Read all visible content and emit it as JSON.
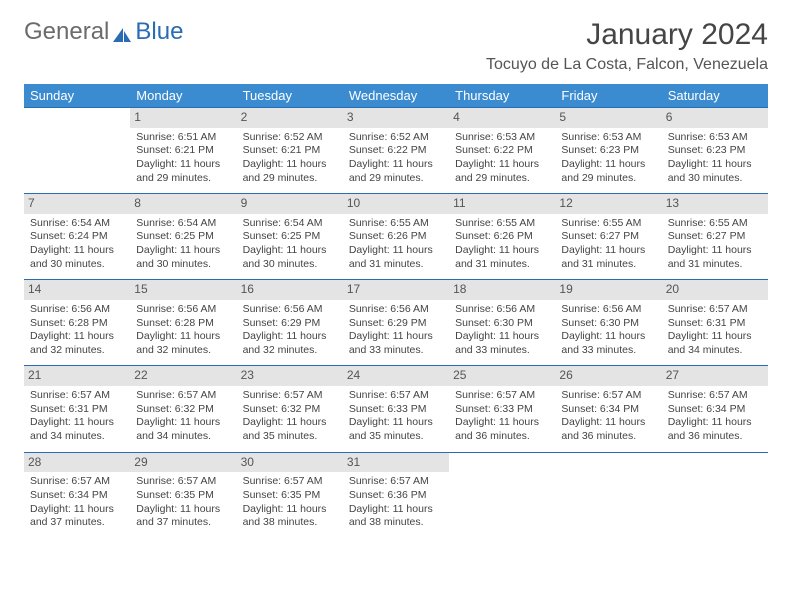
{
  "logo": {
    "text1": "General",
    "text2": "Blue"
  },
  "title": "January 2024",
  "location": "Tocuyo de La Costa, Falcon, Venezuela",
  "colors": {
    "header_bg": "#3b8bd0",
    "header_text": "#ffffff",
    "row_border": "#2a6cb3",
    "daynum_bg": "#e4e4e4",
    "text": "#444444",
    "logo_blue": "#2a6cb3"
  },
  "daysOfWeek": [
    "Sunday",
    "Monday",
    "Tuesday",
    "Wednesday",
    "Thursday",
    "Friday",
    "Saturday"
  ],
  "weeks": [
    [
      null,
      {
        "n": "1",
        "sr": "Sunrise: 6:51 AM",
        "ss": "Sunset: 6:21 PM",
        "d1": "Daylight: 11 hours",
        "d2": "and 29 minutes."
      },
      {
        "n": "2",
        "sr": "Sunrise: 6:52 AM",
        "ss": "Sunset: 6:21 PM",
        "d1": "Daylight: 11 hours",
        "d2": "and 29 minutes."
      },
      {
        "n": "3",
        "sr": "Sunrise: 6:52 AM",
        "ss": "Sunset: 6:22 PM",
        "d1": "Daylight: 11 hours",
        "d2": "and 29 minutes."
      },
      {
        "n": "4",
        "sr": "Sunrise: 6:53 AM",
        "ss": "Sunset: 6:22 PM",
        "d1": "Daylight: 11 hours",
        "d2": "and 29 minutes."
      },
      {
        "n": "5",
        "sr": "Sunrise: 6:53 AM",
        "ss": "Sunset: 6:23 PM",
        "d1": "Daylight: 11 hours",
        "d2": "and 29 minutes."
      },
      {
        "n": "6",
        "sr": "Sunrise: 6:53 AM",
        "ss": "Sunset: 6:23 PM",
        "d1": "Daylight: 11 hours",
        "d2": "and 30 minutes."
      }
    ],
    [
      {
        "n": "7",
        "sr": "Sunrise: 6:54 AM",
        "ss": "Sunset: 6:24 PM",
        "d1": "Daylight: 11 hours",
        "d2": "and 30 minutes."
      },
      {
        "n": "8",
        "sr": "Sunrise: 6:54 AM",
        "ss": "Sunset: 6:25 PM",
        "d1": "Daylight: 11 hours",
        "d2": "and 30 minutes."
      },
      {
        "n": "9",
        "sr": "Sunrise: 6:54 AM",
        "ss": "Sunset: 6:25 PM",
        "d1": "Daylight: 11 hours",
        "d2": "and 30 minutes."
      },
      {
        "n": "10",
        "sr": "Sunrise: 6:55 AM",
        "ss": "Sunset: 6:26 PM",
        "d1": "Daylight: 11 hours",
        "d2": "and 31 minutes."
      },
      {
        "n": "11",
        "sr": "Sunrise: 6:55 AM",
        "ss": "Sunset: 6:26 PM",
        "d1": "Daylight: 11 hours",
        "d2": "and 31 minutes."
      },
      {
        "n": "12",
        "sr": "Sunrise: 6:55 AM",
        "ss": "Sunset: 6:27 PM",
        "d1": "Daylight: 11 hours",
        "d2": "and 31 minutes."
      },
      {
        "n": "13",
        "sr": "Sunrise: 6:55 AM",
        "ss": "Sunset: 6:27 PM",
        "d1": "Daylight: 11 hours",
        "d2": "and 31 minutes."
      }
    ],
    [
      {
        "n": "14",
        "sr": "Sunrise: 6:56 AM",
        "ss": "Sunset: 6:28 PM",
        "d1": "Daylight: 11 hours",
        "d2": "and 32 minutes."
      },
      {
        "n": "15",
        "sr": "Sunrise: 6:56 AM",
        "ss": "Sunset: 6:28 PM",
        "d1": "Daylight: 11 hours",
        "d2": "and 32 minutes."
      },
      {
        "n": "16",
        "sr": "Sunrise: 6:56 AM",
        "ss": "Sunset: 6:29 PM",
        "d1": "Daylight: 11 hours",
        "d2": "and 32 minutes."
      },
      {
        "n": "17",
        "sr": "Sunrise: 6:56 AM",
        "ss": "Sunset: 6:29 PM",
        "d1": "Daylight: 11 hours",
        "d2": "and 33 minutes."
      },
      {
        "n": "18",
        "sr": "Sunrise: 6:56 AM",
        "ss": "Sunset: 6:30 PM",
        "d1": "Daylight: 11 hours",
        "d2": "and 33 minutes."
      },
      {
        "n": "19",
        "sr": "Sunrise: 6:56 AM",
        "ss": "Sunset: 6:30 PM",
        "d1": "Daylight: 11 hours",
        "d2": "and 33 minutes."
      },
      {
        "n": "20",
        "sr": "Sunrise: 6:57 AM",
        "ss": "Sunset: 6:31 PM",
        "d1": "Daylight: 11 hours",
        "d2": "and 34 minutes."
      }
    ],
    [
      {
        "n": "21",
        "sr": "Sunrise: 6:57 AM",
        "ss": "Sunset: 6:31 PM",
        "d1": "Daylight: 11 hours",
        "d2": "and 34 minutes."
      },
      {
        "n": "22",
        "sr": "Sunrise: 6:57 AM",
        "ss": "Sunset: 6:32 PM",
        "d1": "Daylight: 11 hours",
        "d2": "and 34 minutes."
      },
      {
        "n": "23",
        "sr": "Sunrise: 6:57 AM",
        "ss": "Sunset: 6:32 PM",
        "d1": "Daylight: 11 hours",
        "d2": "and 35 minutes."
      },
      {
        "n": "24",
        "sr": "Sunrise: 6:57 AM",
        "ss": "Sunset: 6:33 PM",
        "d1": "Daylight: 11 hours",
        "d2": "and 35 minutes."
      },
      {
        "n": "25",
        "sr": "Sunrise: 6:57 AM",
        "ss": "Sunset: 6:33 PM",
        "d1": "Daylight: 11 hours",
        "d2": "and 36 minutes."
      },
      {
        "n": "26",
        "sr": "Sunrise: 6:57 AM",
        "ss": "Sunset: 6:34 PM",
        "d1": "Daylight: 11 hours",
        "d2": "and 36 minutes."
      },
      {
        "n": "27",
        "sr": "Sunrise: 6:57 AM",
        "ss": "Sunset: 6:34 PM",
        "d1": "Daylight: 11 hours",
        "d2": "and 36 minutes."
      }
    ],
    [
      {
        "n": "28",
        "sr": "Sunrise: 6:57 AM",
        "ss": "Sunset: 6:34 PM",
        "d1": "Daylight: 11 hours",
        "d2": "and 37 minutes."
      },
      {
        "n": "29",
        "sr": "Sunrise: 6:57 AM",
        "ss": "Sunset: 6:35 PM",
        "d1": "Daylight: 11 hours",
        "d2": "and 37 minutes."
      },
      {
        "n": "30",
        "sr": "Sunrise: 6:57 AM",
        "ss": "Sunset: 6:35 PM",
        "d1": "Daylight: 11 hours",
        "d2": "and 38 minutes."
      },
      {
        "n": "31",
        "sr": "Sunrise: 6:57 AM",
        "ss": "Sunset: 6:36 PM",
        "d1": "Daylight: 11 hours",
        "d2": "and 38 minutes."
      },
      null,
      null,
      null
    ]
  ]
}
